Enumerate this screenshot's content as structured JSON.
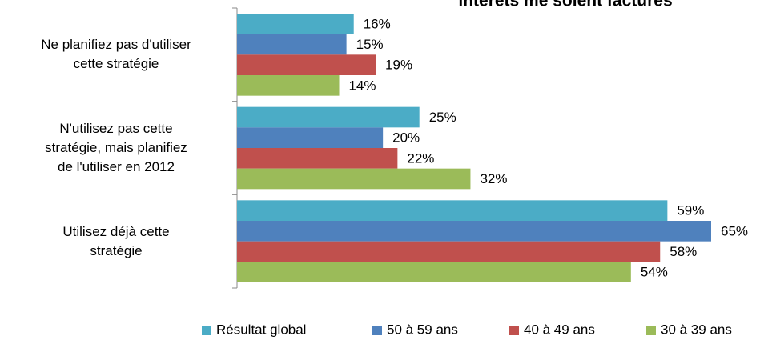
{
  "chart_data": {
    "type": "bar",
    "orientation": "horizontal",
    "title": "intérêts me soient facturés",
    "categories": [
      "Ne planifiez pas d'utiliser\ncette stratégie",
      "N'utilisez pas cette\nstratégie, mais planifiez\nde l'utiliser en 2012",
      "Utilisez déjà cette\nstratégie"
    ],
    "series": [
      {
        "name": "Résultat global",
        "color": "#4bacc6",
        "values": [
          16,
          25,
          59
        ],
        "value_labels": [
          "16%",
          "25%",
          "59%"
        ]
      },
      {
        "name": "50 à 59 ans",
        "color": "#4f81bd",
        "values": [
          15,
          20,
          65
        ],
        "value_labels": [
          "15%",
          "20%",
          "65%"
        ]
      },
      {
        "name": "40 à 49 ans",
        "color": "#c0504d",
        "values": [
          19,
          22,
          58
        ],
        "value_labels": [
          "19%",
          "22%",
          "58%"
        ]
      },
      {
        "name": "30 à 39 ans",
        "color": "#9bbb59",
        "values": [
          14,
          32,
          54
        ],
        "value_labels": [
          "14%",
          "32%",
          "54%"
        ]
      }
    ],
    "xlim": [
      0,
      65
    ],
    "legend": "bottom"
  }
}
